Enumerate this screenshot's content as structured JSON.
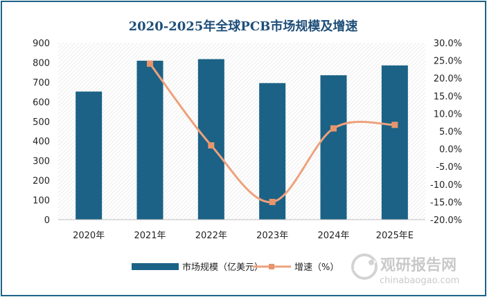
{
  "chart_data": {
    "type": "bar+line",
    "title": "2020-2025年全球PCB市场规模及增速",
    "categories": [
      "2020年",
      "2021年",
      "2022年",
      "2023年",
      "2024年",
      "2025年E"
    ],
    "series": [
      {
        "name": "市场规模（亿美元）",
        "type": "bar",
        "axis": "left",
        "values": [
          652,
          809,
          817,
          695,
          735,
          785
        ]
      },
      {
        "name": "增速（%）",
        "type": "line",
        "axis": "right",
        "smooth": true,
        "values": [
          null,
          24.1,
          1.0,
          -15.0,
          5.8,
          6.8
        ]
      }
    ],
    "y_left": {
      "min": 0,
      "max": 900,
      "ticks": [
        "0",
        "100",
        "200",
        "300",
        "400",
        "500",
        "600",
        "700",
        "800",
        "900"
      ]
    },
    "y_right": {
      "min": -20,
      "max": 30,
      "ticks": [
        "-20.0%",
        "-15.0%",
        "-10.0%",
        "-5.0%",
        "0.0%",
        "5.0%",
        "10.0%",
        "15.0%",
        "20.0%",
        "25.0%",
        "30.0%"
      ]
    },
    "legend_position": "bottom",
    "colors": {
      "bar": "#1b6286",
      "line": "#eea17c",
      "marker": "#e8956c",
      "title": "#1f4e79",
      "border": "#1b6286"
    }
  },
  "watermark": {
    "text": "观研报告网",
    "url": "chinabaogao.com"
  }
}
